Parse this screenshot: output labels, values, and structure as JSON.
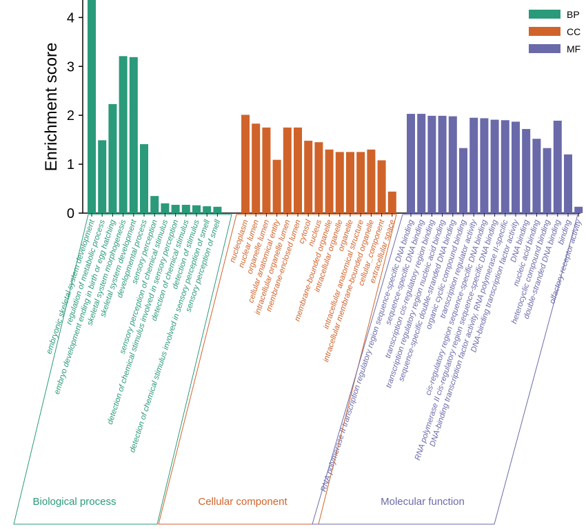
{
  "chart_data": {
    "type": "bar",
    "ylabel": "Enrichment score",
    "ylim": [
      0,
      4.4
    ],
    "yticks": [
      0,
      1,
      2,
      3,
      4
    ],
    "legend_position": "top-right",
    "groups": [
      {
        "key": "BP",
        "legend": "BP",
        "name": "Biological   process",
        "color": "#2a9a7a",
        "categories": [
          "embryonic skeletal system development",
          "regulation of metabolic process",
          "embryo development ending in birth or egg hatching",
          "skeletal system morphogenesis",
          "skeletal system development",
          "developmental process",
          "sensory perception",
          "sensory perception of chemical stimulus",
          "detection of chemical stimulus involved in sensory perception",
          "detection of chemical stimulus",
          "detection of stimulus",
          "detection of chemical stimulus involved in sensory perception of smell",
          "sensory perception of smell"
        ],
        "values": [
          4.38,
          1.49,
          2.23,
          3.21,
          3.19,
          1.41,
          0.35,
          0.2,
          0.17,
          0.17,
          0.16,
          0.14,
          0.13
        ]
      },
      {
        "key": "CC",
        "legend": "CC",
        "name": "Cellular component",
        "color": "#d0632a",
        "categories": [
          "nucleoplasm",
          "nuclear lumen",
          "organelle lumen",
          "cellular anatomical entity",
          "intracellular organelle lumen",
          "membrane-enclosed lumen",
          "cytosol",
          "nucleus",
          "membrane-bounded organelle",
          "intracellular organelle",
          "organelle",
          "intracellular anatomical structure",
          "intracellular membrane-bounded organelle",
          "cellular_component",
          "extracellular space"
        ],
        "values": [
          2.01,
          1.83,
          1.75,
          1.09,
          1.75,
          1.75,
          1.48,
          1.45,
          1.3,
          1.25,
          1.25,
          1.25,
          1.3,
          1.08,
          0.44
        ]
      },
      {
        "key": "MF",
        "legend": "MF",
        "name": "Molecular function",
        "color": "#6a6aaa",
        "categories": [
          "RNA polymerase II transcription regulatory region sequence-specific DNA binding",
          "sequence-specific DNA binding",
          "transcription cis-regulatory region binding",
          "transcription regulatory region nucleic acid binding",
          "sequence-specific double-stranded DNA binding",
          "organic cyclic compound binding",
          "transcription regulator activity",
          "cis-regulatory region sequence-specific DNA binding",
          "RNA polymerase II cis-regulatory region sequence-specific DNA binding",
          "DNA-binding transcription factor activity, RNA polymerase II-specific",
          "DNA-binding transcription factor activity",
          "DNA binding",
          "nucleic acid binding",
          "heterocyclic compound binding",
          "double-stranded DNA binding",
          "binding",
          "olfactory receptor activity"
        ],
        "values": [
          2.03,
          2.03,
          1.99,
          1.99,
          1.98,
          1.33,
          1.95,
          1.94,
          1.91,
          1.9,
          1.87,
          1.72,
          1.52,
          1.33,
          1.89,
          1.2,
          0.13
        ]
      }
    ]
  }
}
